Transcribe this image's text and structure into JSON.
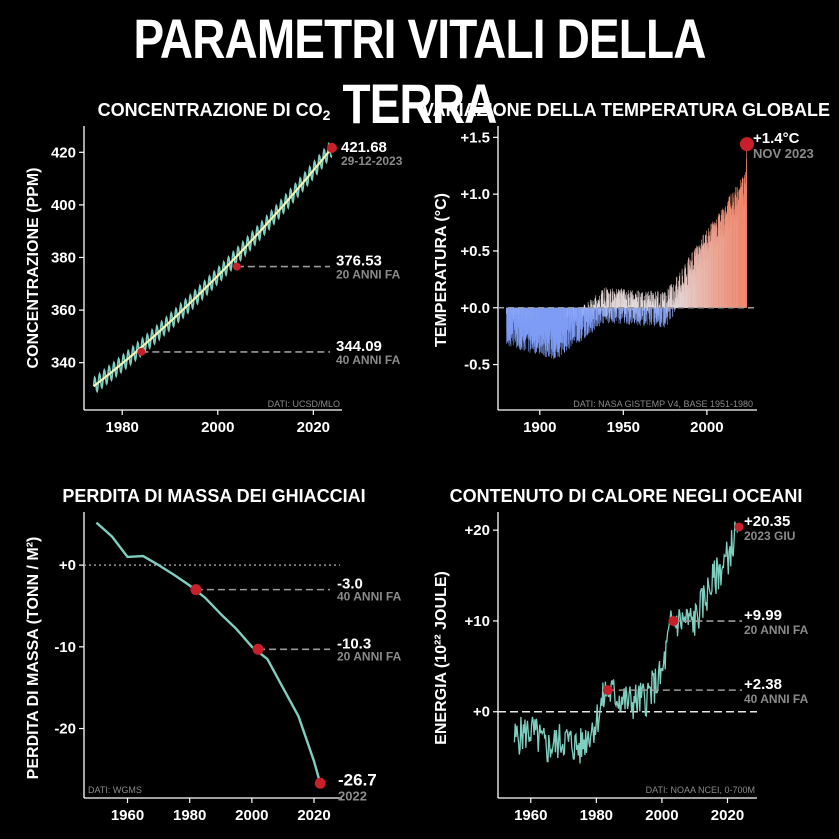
{
  "title": "PARAMETRI VITALI DELLA TERRA",
  "colors": {
    "background": "#000000",
    "line": "#7fcfc0",
    "co2_trend": "#f2f5b8",
    "marker": "#c8202a",
    "dashed": "#9a9a9a",
    "cold": "#7f9df5",
    "warm": "#f0866b"
  },
  "chart_data": [
    {
      "id": "co2",
      "type": "line",
      "title": "CONCENTRAZIONE DI CO",
      "title_subscript": "2",
      "ylabel": "CONCENTRAZIONE (PPM)",
      "xlim": [
        1972,
        2026
      ],
      "ylim": [
        322,
        430
      ],
      "xticks": [
        "1980",
        "2000",
        "2020"
      ],
      "yticks": [
        "340",
        "360",
        "380",
        "400",
        "420"
      ],
      "x_start": 1974,
      "x_end": 2023.9,
      "y_start": 331,
      "y_end": 421.68,
      "annotations": [
        {
          "value": "421.68",
          "label": "29-12-2023",
          "x": 2023.9,
          "y": 421.68,
          "dashed": false
        },
        {
          "value": "376.53",
          "label": "20 ANNI FA",
          "x": 2004,
          "y": 376.53,
          "dashed": true
        },
        {
          "value": "344.09",
          "label": "40 ANNI FA",
          "x": 1984,
          "y": 344.09,
          "dashed": true
        }
      ],
      "source": "DATI: UCSD/MLO"
    },
    {
      "id": "temp",
      "type": "bar",
      "title": "VARIAZIONE DELLA TEMPERATURA GLOBALE",
      "ylabel": "TEMPERATURA (°C)",
      "xlim": [
        1875,
        2030
      ],
      "ylim": [
        -0.9,
        1.6
      ],
      "xticks": [
        "1900",
        "1950",
        "2000"
      ],
      "yticks": [
        "-0.5",
        "+0.0",
        "+0.5",
        "+1.0",
        "+1.5"
      ],
      "x_start": 1880,
      "x_end": 2023.8,
      "annotations": [
        {
          "value": "+1.4°C",
          "label": "NOV 2023",
          "x": 2024,
          "y": 1.44
        }
      ],
      "source": "DATI: NASA GISTEMP V4, BASE 1951-1980"
    },
    {
      "id": "ice",
      "type": "line",
      "title": "PERDITA DI MASSA DEI GHIACCIAI",
      "ylabel": "PERDITA DI MASSA (TONN / M²)",
      "xlim": [
        1946,
        2029
      ],
      "ylim": [
        -28.5,
        6.5
      ],
      "xticks": [
        "1960",
        "1980",
        "2000",
        "2020"
      ],
      "yticks": [
        "+0",
        "-10",
        "-20"
      ],
      "series": {
        "x": [
          1950,
          1955,
          1960,
          1965,
          1970,
          1975,
          1980,
          1985,
          1990,
          1995,
          2000,
          2005,
          2010,
          2015,
          2020,
          2022
        ],
        "y": [
          5.2,
          3.5,
          1.0,
          1.1,
          0.0,
          -1.2,
          -2.5,
          -4.0,
          -6.0,
          -7.8,
          -10.0,
          -11.5,
          -15.0,
          -18.5,
          -24.0,
          -26.7
        ]
      },
      "annotations": [
        {
          "value": "-3.0",
          "label": "40 ANNI FA",
          "x": 1982,
          "y": -3.0
        },
        {
          "value": "-10.3",
          "label": "20 ANNI FA",
          "x": 2002,
          "y": -10.3
        },
        {
          "value": "-26.7",
          "label": "2022",
          "x": 2022,
          "y": -26.7
        }
      ],
      "source": "DATI: WGMS"
    },
    {
      "id": "ocean",
      "type": "line",
      "title": "CONTENUTO DI CALORE NEGLI OCEANI",
      "ylabel": "ENERGIA (10²² JOULE)",
      "xlim": [
        1950,
        2029
      ],
      "ylim": [
        -9.5,
        22
      ],
      "xticks": [
        "1960",
        "1980",
        "2000",
        "2020"
      ],
      "yticks": [
        "+0",
        "+10",
        "+20"
      ],
      "series": {
        "x": [
          1955,
          1960,
          1965,
          1970,
          1975,
          1980,
          1983,
          1990,
          1995,
          2000,
          2003,
          2010,
          2015,
          2020,
          2023.5
        ],
        "y": [
          -3,
          -2,
          -4,
          -3,
          -4,
          -1,
          2.38,
          1,
          1.5,
          4,
          9.99,
          10,
          14,
          17,
          20.35
        ]
      },
      "annotations": [
        {
          "value": "+20.35",
          "label": "2023 GIU",
          "x": 2023.5,
          "y": 20.35
        },
        {
          "value": "+9.99",
          "label": "20 ANNI FA",
          "x": 2003.5,
          "y": 9.99
        },
        {
          "value": "+2.38",
          "label": "40 ANNI FA",
          "x": 1983.5,
          "y": 2.38
        }
      ],
      "source": "DATI: NOAA NCEI, 0-700M"
    }
  ]
}
